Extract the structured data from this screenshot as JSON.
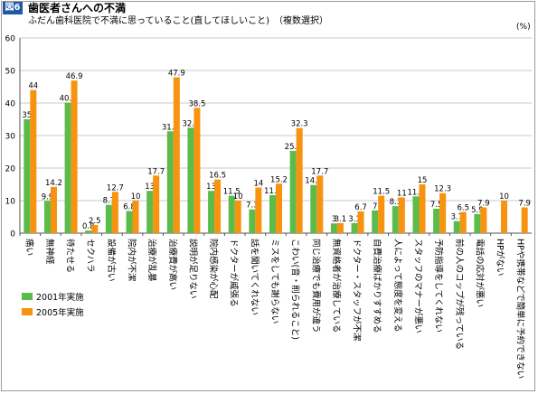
{
  "header": {
    "figure_label": "図6",
    "title": "歯医者さんへの不満",
    "subtitle": "ふだん歯科医院で不満に思っていること(直してほしいこと)　（複数選択）",
    "unit": "(%)"
  },
  "colors": {
    "series_2001": "#5dbb4a",
    "series_2005": "#f7930e"
  },
  "chart_data": {
    "type": "bar",
    "title": "歯医者さんへの不満",
    "subtitle": "ふだん歯科医院で不満に思っていること(直してほしいこと)　（複数選択）",
    "ylabel": "(%)",
    "xlabel": "",
    "ylim": [
      0,
      60
    ],
    "yticks": [
      0,
      10,
      20,
      30,
      40,
      50,
      60
    ],
    "grid": true,
    "legend": "center-left",
    "categories": [
      "痛い",
      "無神経",
      "待たせる",
      "セクハラ",
      "設備が古い",
      "院内が不潔",
      "治療が乱暴",
      "治療費が高い",
      "説明が足りない",
      "院内感染が心配",
      "ドクターが威張る",
      "話を聞いてくれない",
      "ミスをしても謝らない",
      "こわい(音・削られること)",
      "同じ治療でも費用が違う",
      "無資格者が治療している",
      "ドクター・スタッフが不潔",
      "自費治療ばかりすすめる",
      "人によって態度を変える",
      "スタッフのマナーが悪い",
      "予防指導をしてくれない",
      "前の人のコップが残っている",
      "電話の応対が悪い",
      "HPがない",
      "HPや携帯などで簡単に予約できない"
    ],
    "series": [
      {
        "name": "2001年実施",
        "values": [
          35,
          9.9,
          40.1,
          0.8,
          8.7,
          6.8,
          13,
          31.3,
          32.4,
          13,
          11.5,
          7.3,
          11.7,
          25.3,
          14.8,
          3,
          3.1,
          7,
          8.3,
          11.3,
          7.5,
          3.7,
          5.9,
          null,
          null
        ]
      },
      {
        "name": "2005年実施",
        "values": [
          44,
          14.2,
          46.9,
          2.5,
          12.7,
          10,
          17.7,
          47.9,
          38.5,
          16.5,
          10,
          14,
          15.2,
          32.3,
          17.7,
          3.1,
          6.7,
          11.5,
          11,
          15,
          12.3,
          6.5,
          7.9,
          10,
          7.9
        ]
      }
    ]
  }
}
